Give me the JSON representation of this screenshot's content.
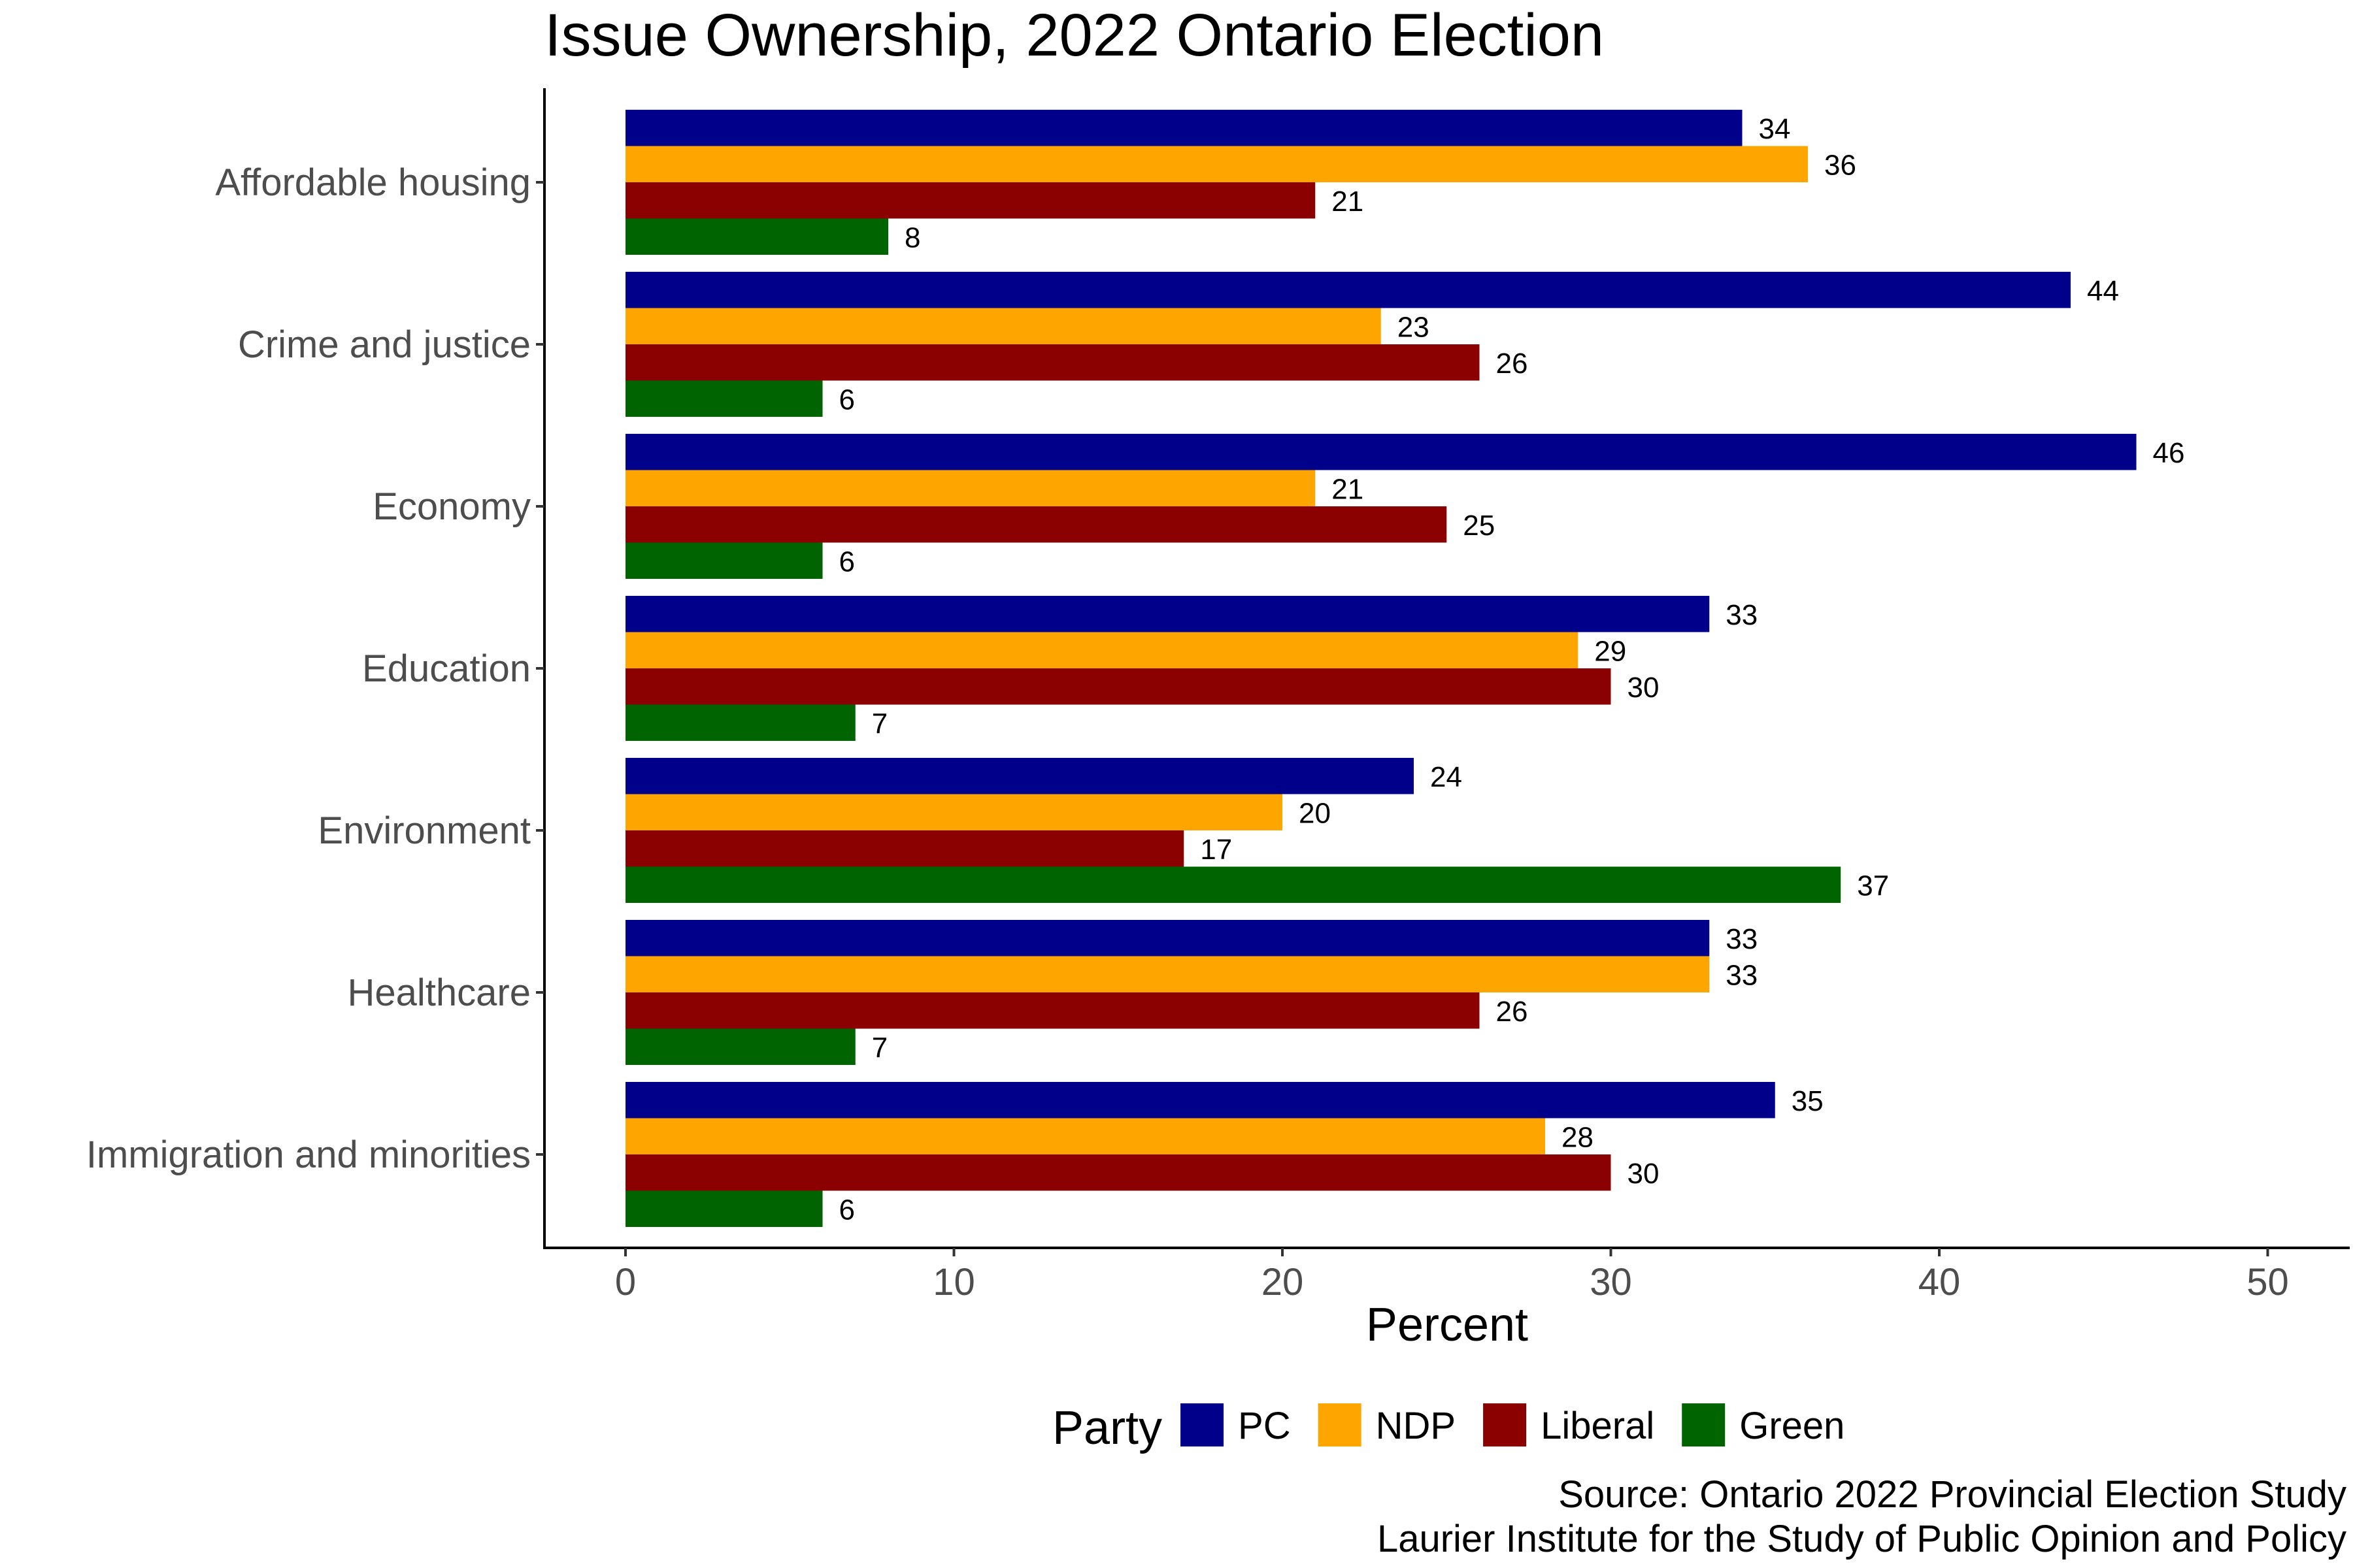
{
  "chart_data": {
    "type": "bar",
    "orientation": "horizontal",
    "title": "Issue Ownership, 2022 Ontario Election",
    "xlabel": "Percent",
    "ylabel": "",
    "xlim": [
      0,
      50
    ],
    "xticks": [
      0,
      10,
      20,
      30,
      40,
      50
    ],
    "grid": false,
    "legend_position": "bottom",
    "legend_title": "Party",
    "categories": [
      "Affordable housing",
      "Crime and justice",
      "Economy",
      "Education",
      "Environment",
      "Healthcare",
      "Immigration and minorities"
    ],
    "series": [
      {
        "name": "PC",
        "color": "#00008b",
        "values": [
          34,
          44,
          46,
          33,
          24,
          33,
          35
        ]
      },
      {
        "name": "NDP",
        "color": "#ffa500",
        "values": [
          36,
          23,
          21,
          29,
          20,
          33,
          28
        ]
      },
      {
        "name": "Liberal",
        "color": "#8b0000",
        "values": [
          21,
          26,
          25,
          30,
          17,
          26,
          30
        ]
      },
      {
        "name": "Green",
        "color": "#006400",
        "values": [
          8,
          6,
          6,
          7,
          37,
          7,
          6
        ]
      }
    ],
    "caption": [
      "Source: Ontario 2022 Provincial Election Study",
      "Laurier Institute for the Study of Public Opinion and Policy"
    ]
  }
}
